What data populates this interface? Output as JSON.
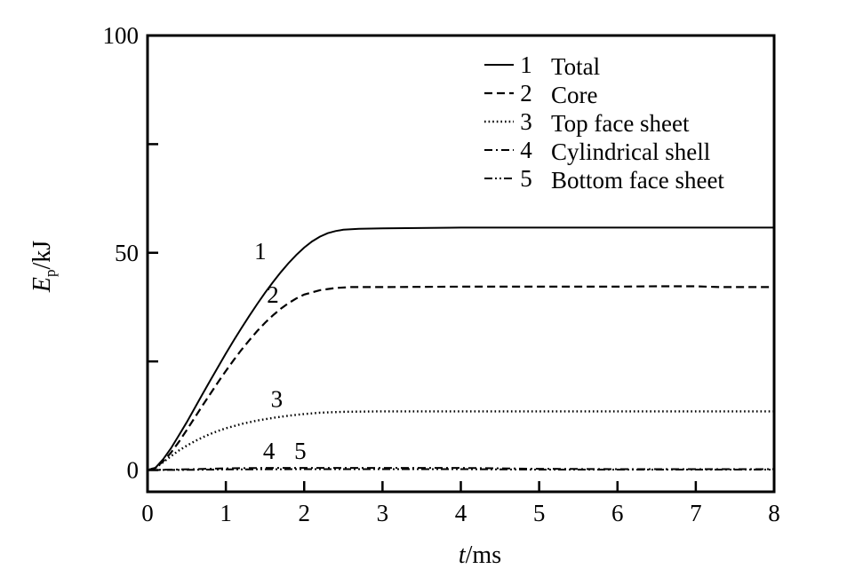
{
  "chart_data": {
    "type": "line",
    "xlabel": {
      "var": "t",
      "unit": "/ms"
    },
    "ylabel": {
      "var": "E",
      "sub": "p",
      "unit": "/kJ"
    },
    "xlim": [
      0,
      8
    ],
    "ylim": [
      -5,
      100
    ],
    "x_ticks": [
      0,
      1,
      2,
      3,
      4,
      5,
      6,
      7,
      8
    ],
    "y_ticks_labeled": [
      0,
      50,
      100
    ],
    "y_ticks_minor": [
      25,
      75
    ],
    "legend_position": "top-right",
    "grid": false,
    "series": [
      {
        "id": "1",
        "name": "Total",
        "dash": "solid",
        "curve_label": "1",
        "curve_label_at": [
          1.44,
          48.5
        ],
        "points": [
          [
            0,
            0
          ],
          [
            0.1,
            0.5
          ],
          [
            0.2,
            2.5
          ],
          [
            0.3,
            5
          ],
          [
            0.4,
            8
          ],
          [
            0.5,
            11
          ],
          [
            0.6,
            14.2
          ],
          [
            0.7,
            17.4
          ],
          [
            0.8,
            20.6
          ],
          [
            0.9,
            23.7
          ],
          [
            1.0,
            26.8
          ],
          [
            1.1,
            29.8
          ],
          [
            1.2,
            32.7
          ],
          [
            1.3,
            35.5
          ],
          [
            1.4,
            38.2
          ],
          [
            1.5,
            40.8
          ],
          [
            1.6,
            43.2
          ],
          [
            1.7,
            45.5
          ],
          [
            1.8,
            47.6
          ],
          [
            1.9,
            49.5
          ],
          [
            2.0,
            51.2
          ],
          [
            2.1,
            52.6
          ],
          [
            2.2,
            53.7
          ],
          [
            2.3,
            54.5
          ],
          [
            2.4,
            55.0
          ],
          [
            2.5,
            55.3
          ],
          [
            2.7,
            55.5
          ],
          [
            3.0,
            55.6
          ],
          [
            4.0,
            55.8
          ],
          [
            5.0,
            55.8
          ],
          [
            6.0,
            55.8
          ],
          [
            7.0,
            55.8
          ],
          [
            8.0,
            55.8
          ]
        ]
      },
      {
        "id": "2",
        "name": "Core",
        "dash": "dashed",
        "curve_label": "2",
        "curve_label_at": [
          1.6,
          38.5
        ],
        "points": [
          [
            0,
            0
          ],
          [
            0.1,
            0.5
          ],
          [
            0.2,
            2.0
          ],
          [
            0.3,
            4.0
          ],
          [
            0.4,
            6.5
          ],
          [
            0.5,
            9.2
          ],
          [
            0.6,
            12.0
          ],
          [
            0.7,
            14.8
          ],
          [
            0.8,
            17.5
          ],
          [
            0.9,
            20.2
          ],
          [
            1.0,
            22.8
          ],
          [
            1.1,
            25.3
          ],
          [
            1.2,
            27.7
          ],
          [
            1.3,
            29.9
          ],
          [
            1.4,
            32.0
          ],
          [
            1.5,
            33.9
          ],
          [
            1.6,
            35.6
          ],
          [
            1.7,
            37.1
          ],
          [
            1.8,
            38.4
          ],
          [
            1.9,
            39.5
          ],
          [
            2.0,
            40.4
          ],
          [
            2.2,
            41.4
          ],
          [
            2.4,
            41.9
          ],
          [
            2.6,
            42.1
          ],
          [
            3.0,
            42.1
          ],
          [
            4.0,
            42.2
          ],
          [
            5.0,
            42.2
          ],
          [
            6.0,
            42.2
          ],
          [
            6.5,
            42.3
          ],
          [
            7.0,
            42.3
          ],
          [
            7.3,
            42.1
          ],
          [
            8.0,
            42.1
          ]
        ]
      },
      {
        "id": "3",
        "name": "Top face sheet",
        "dash": "dotted",
        "curve_label": "3",
        "curve_label_at": [
          1.65,
          14.5
        ],
        "points": [
          [
            0,
            0
          ],
          [
            0.1,
            0.5
          ],
          [
            0.2,
            1.8
          ],
          [
            0.3,
            3.2
          ],
          [
            0.4,
            4.5
          ],
          [
            0.5,
            5.6
          ],
          [
            0.6,
            6.6
          ],
          [
            0.7,
            7.5
          ],
          [
            0.8,
            8.3
          ],
          [
            0.9,
            9.0
          ],
          [
            1.0,
            9.6
          ],
          [
            1.2,
            10.6
          ],
          [
            1.4,
            11.4
          ],
          [
            1.6,
            12.0
          ],
          [
            1.8,
            12.5
          ],
          [
            2.0,
            12.9
          ],
          [
            2.2,
            13.2
          ],
          [
            2.5,
            13.4
          ],
          [
            3.0,
            13.5
          ],
          [
            4.0,
            13.5
          ],
          [
            5.0,
            13.5
          ],
          [
            6.0,
            13.5
          ],
          [
            7.0,
            13.5
          ],
          [
            8.0,
            13.5
          ]
        ]
      },
      {
        "id": "4",
        "name": "Cylindrical shell",
        "dash": "dashdot",
        "curve_label": "4",
        "curve_label_at": [
          1.55,
          2.6
        ],
        "points": [
          [
            0,
            0
          ],
          [
            0.3,
            0.1
          ],
          [
            0.6,
            0.2
          ],
          [
            1.0,
            0.4
          ],
          [
            1.5,
            0.5
          ],
          [
            2.0,
            0.5
          ],
          [
            3.0,
            0.5
          ],
          [
            4.0,
            0.5
          ],
          [
            5.0,
            0.3
          ],
          [
            6.0,
            0.2
          ],
          [
            7.0,
            0.2
          ],
          [
            8.0,
            0.2
          ]
        ]
      },
      {
        "id": "5",
        "name": "Bottom face sheet",
        "dash": "dashdotdot",
        "curve_label": "5",
        "curve_label_at": [
          1.95,
          2.6
        ],
        "points": [
          [
            0,
            0
          ],
          [
            0.5,
            0.05
          ],
          [
            1.0,
            0.15
          ],
          [
            2.0,
            0.2
          ],
          [
            3.0,
            0.2
          ],
          [
            4.0,
            0.2
          ],
          [
            5.0,
            0.1
          ],
          [
            6.0,
            0.1
          ],
          [
            7.0,
            0.1
          ],
          [
            8.0,
            0.1
          ]
        ]
      }
    ]
  }
}
